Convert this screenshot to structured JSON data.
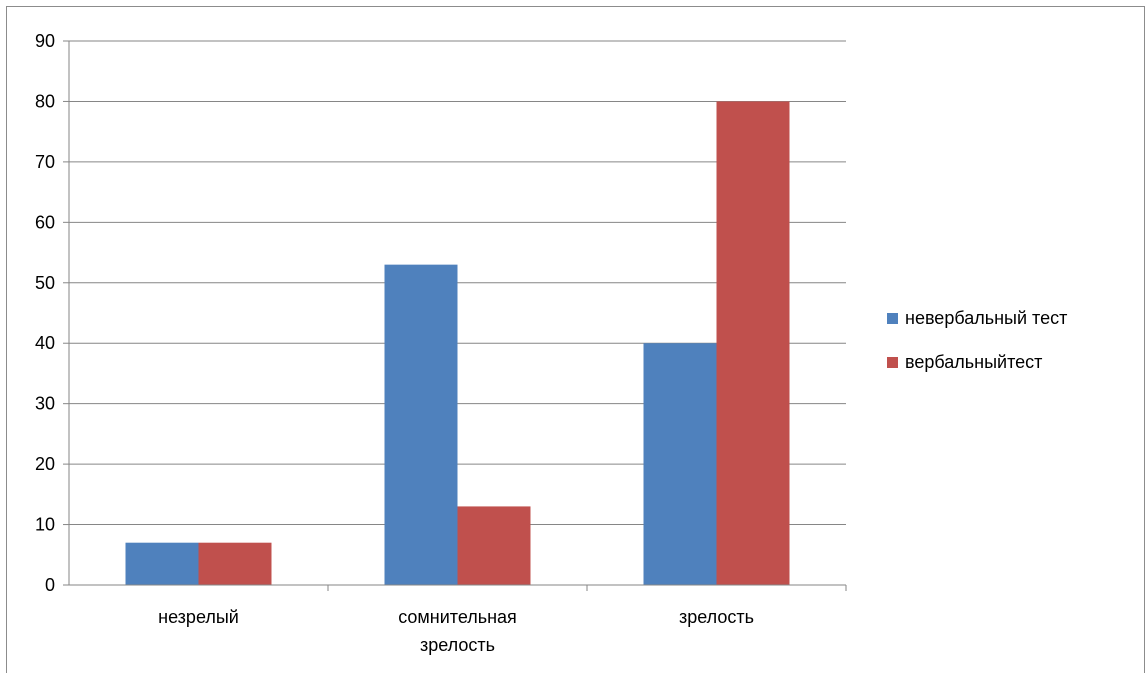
{
  "chart_data": {
    "type": "bar",
    "categories": [
      [
        "незрелый"
      ],
      [
        "сомнительная",
        "зрелость"
      ],
      [
        "зрелость"
      ]
    ],
    "series": [
      {
        "name": "невербальный тест",
        "color": "#4F81BD",
        "values": [
          7,
          53,
          40
        ]
      },
      {
        "name": "вербальныйтест",
        "color": "#C0504D",
        "values": [
          7,
          13,
          80
        ]
      }
    ],
    "ylim": [
      0,
      90
    ],
    "yticks": [
      "0",
      "10",
      "20",
      "30",
      "40",
      "50",
      "60",
      "70",
      "80",
      "90"
    ],
    "grid": true,
    "legend_position": "right"
  }
}
